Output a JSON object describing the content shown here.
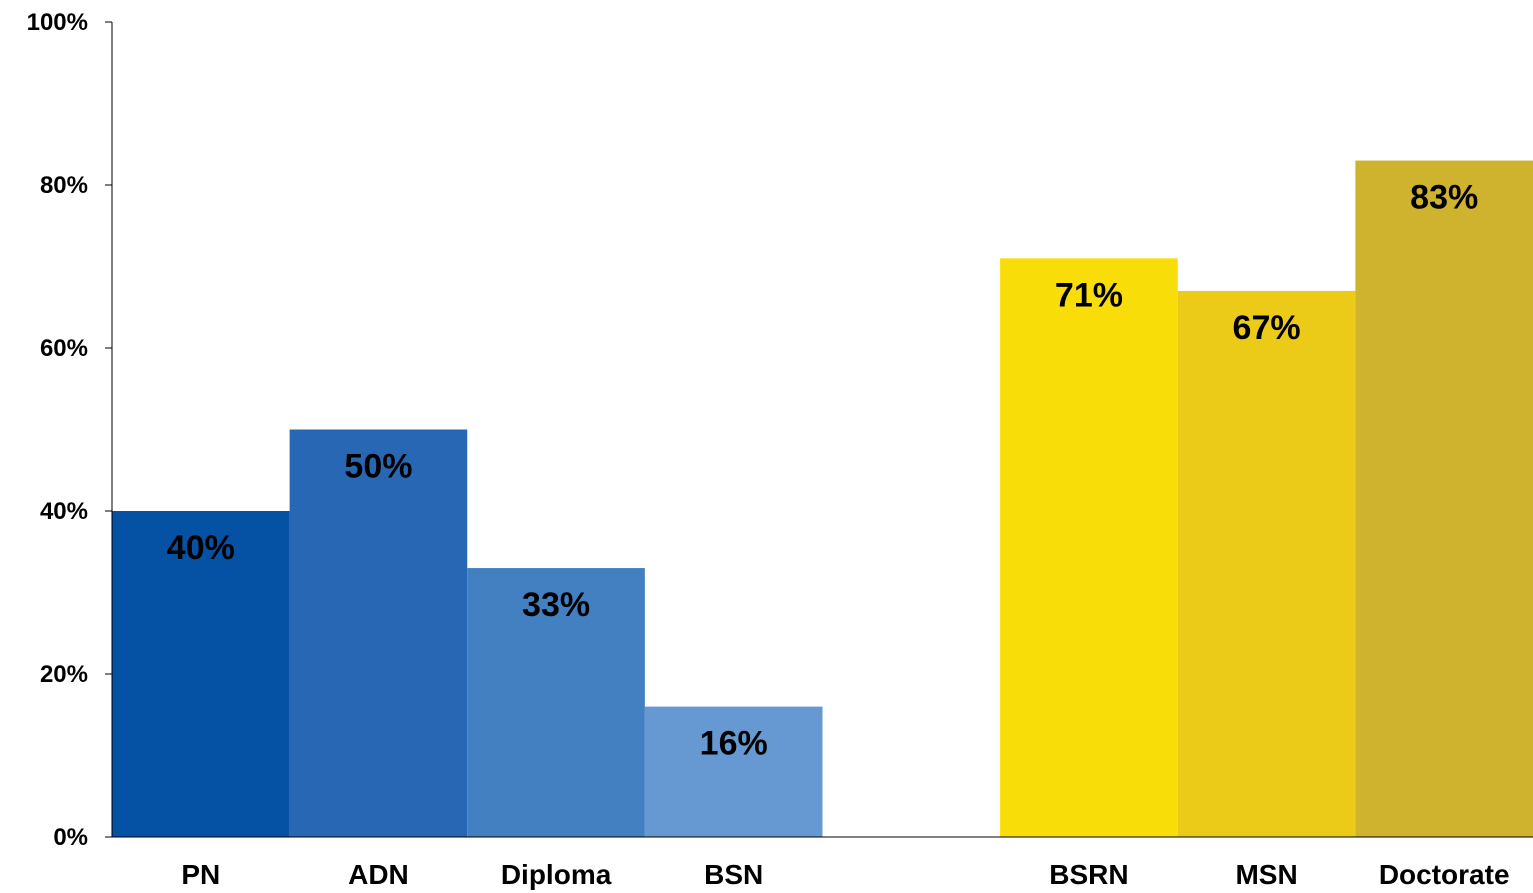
{
  "chart_data": {
    "type": "bar",
    "categories": [
      "PN",
      "ADN",
      "Diploma",
      "BSN",
      "",
      "BSRN",
      "MSN",
      "Doctorate"
    ],
    "values": [
      40,
      50,
      33,
      16,
      null,
      71,
      67,
      83
    ],
    "data_labels": [
      "40%",
      "50%",
      "33%",
      "16%",
      "",
      "71%",
      "67%",
      "83%"
    ],
    "bar_colors": [
      "#0551a3",
      "#2867b4",
      "#4380c2",
      "#6699d1",
      "",
      "#f9dd08",
      "#ebcb17",
      "#cfb22d"
    ],
    "ylim": [
      0,
      100
    ],
    "yticks": [
      0,
      20,
      40,
      60,
      80,
      100
    ],
    "ytick_labels": [
      "0%",
      "20%",
      "40%",
      "60%",
      "80%",
      "100%"
    ],
    "grid": false,
    "legend": "none",
    "axis_color": "#000000"
  }
}
